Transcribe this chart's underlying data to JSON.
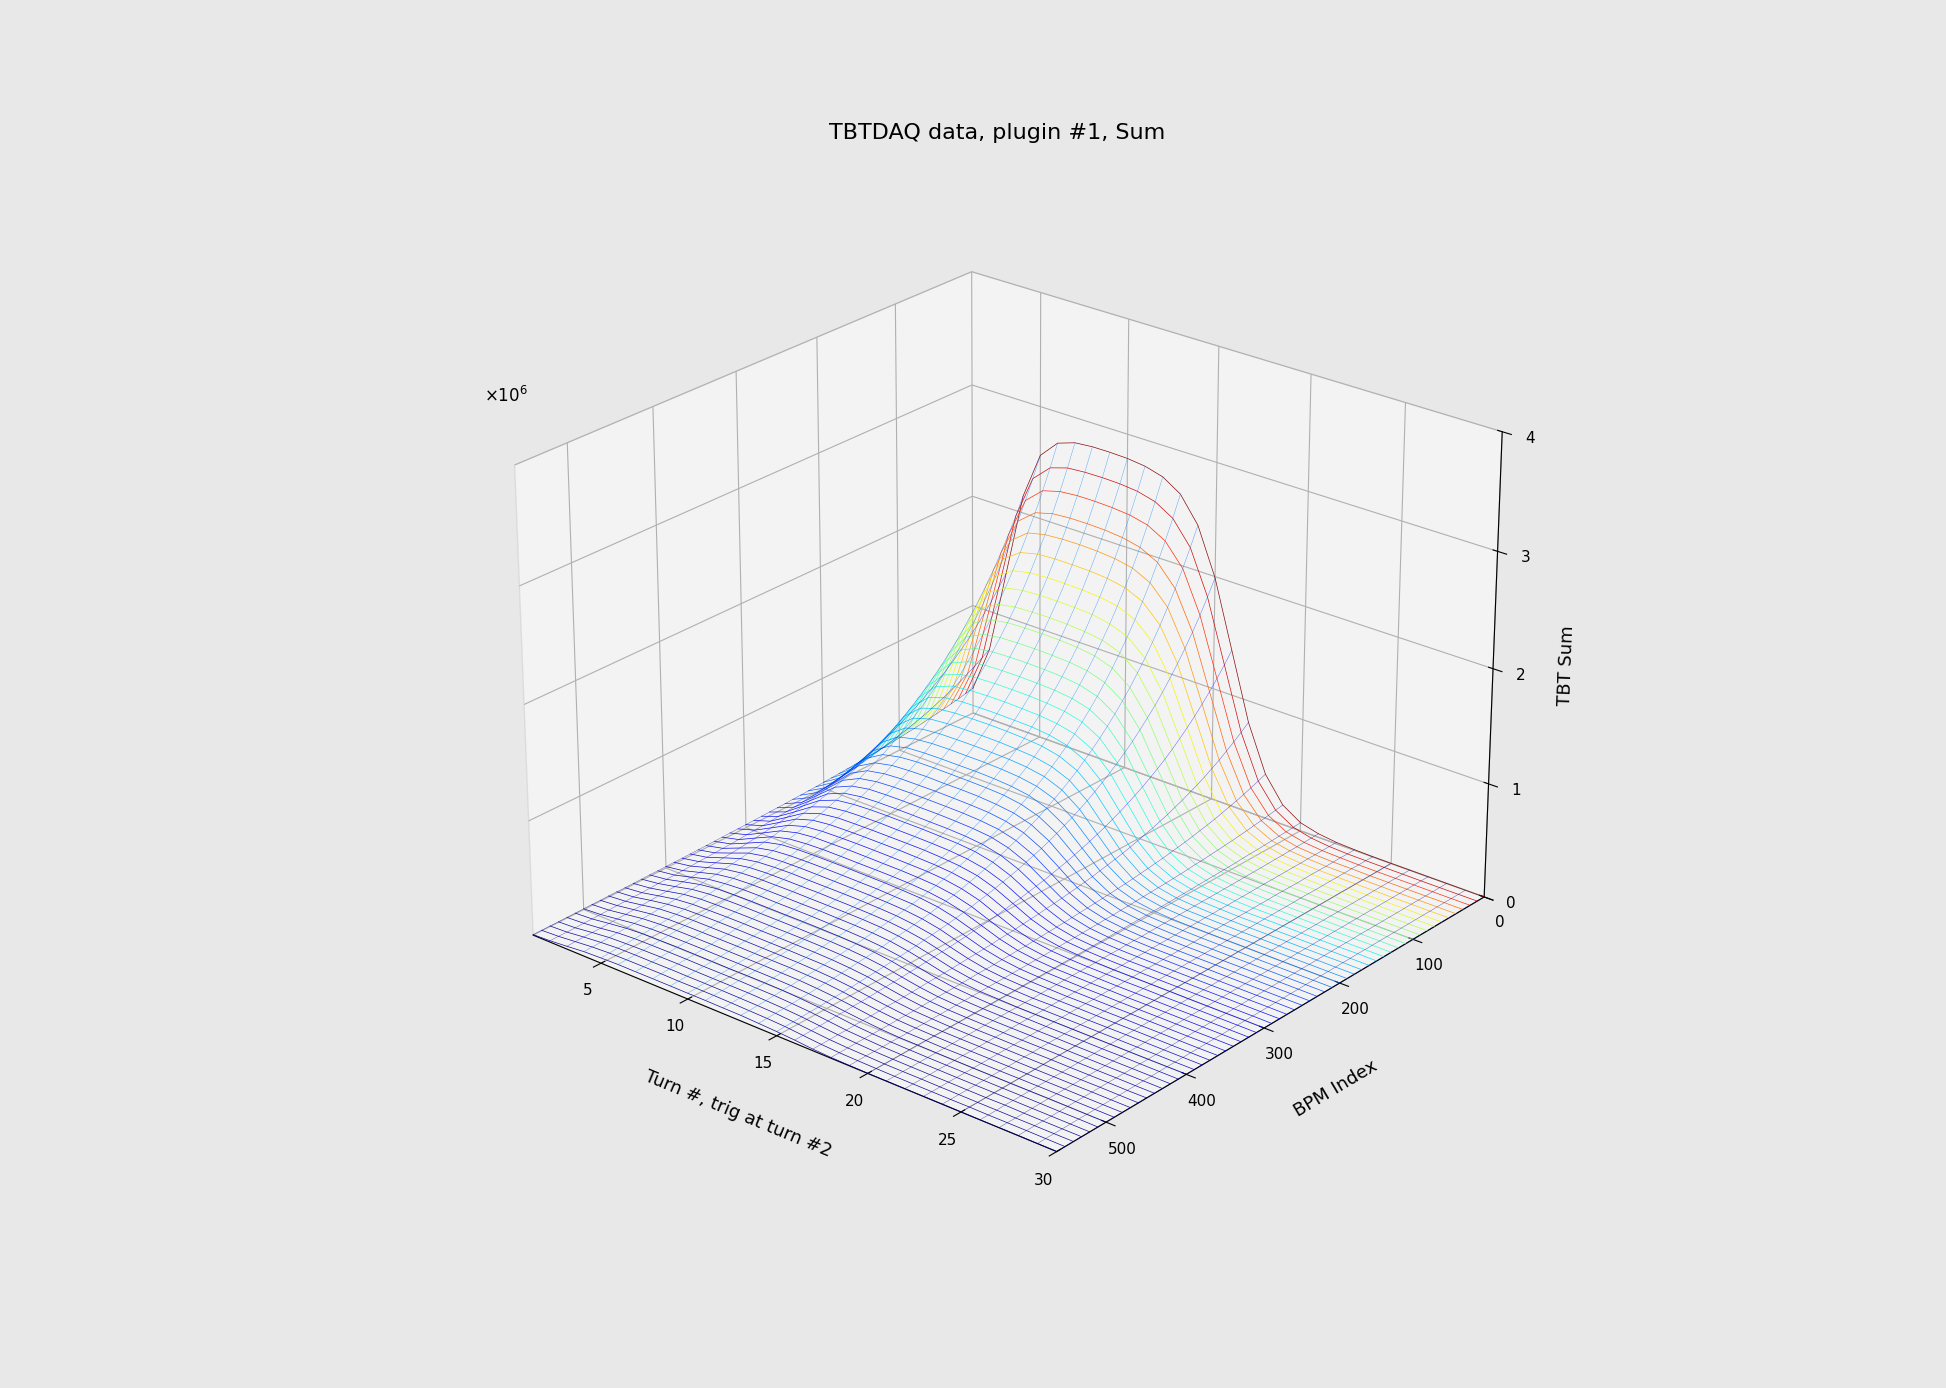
{
  "title": "TBTDAQ data, plugin #1, Sum",
  "xlabel": "Turn #, trig at turn #2",
  "ylabel": "BPM Index",
  "zlabel": "TBT Sum",
  "n_turns": 30,
  "n_bpms": 57,
  "bpm_max": 560,
  "zlim": [
    0,
    4000000
  ],
  "background_color": "#e8e8e8",
  "title_fontsize": 16,
  "label_fontsize": 13,
  "tick_fontsize": 11,
  "elev": 25,
  "azim": -50,
  "colormap": "jet"
}
